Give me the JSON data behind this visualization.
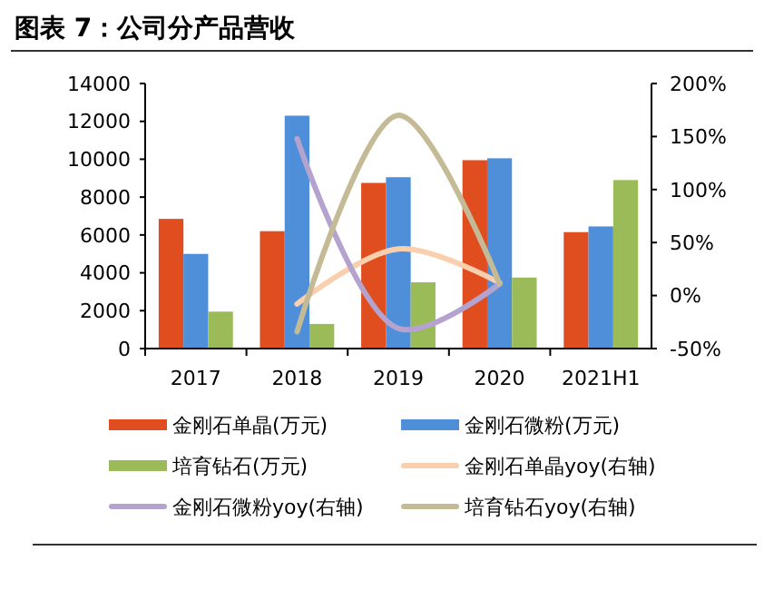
{
  "chart_data": {
    "type": "bar",
    "title": "图表 7：公司分产品营收",
    "categories": [
      "2017",
      "2018",
      "2019",
      "2020",
      "2021H1"
    ],
    "series": [
      {
        "name": "金刚石单晶(万元)",
        "color": "#e04e20",
        "values": [
          6850,
          6200,
          8750,
          9950,
          6150
        ]
      },
      {
        "name": "金刚石微粉(万元)",
        "color": "#4f8fd9",
        "values": [
          5000,
          12300,
          9050,
          10050,
          6450
        ]
      },
      {
        "name": "培育钻石(万元)",
        "color": "#9bbb59",
        "values": [
          1950,
          1300,
          3500,
          3750,
          8900
        ]
      },
      {
        "name": "金刚石单晶yoy(右轴)",
        "type": "line",
        "axis": "y2",
        "color": "#f9cfae",
        "values": [
          null,
          -8,
          44,
          12,
          null
        ]
      },
      {
        "name": "金刚石微粉yoy(右轴)",
        "type": "line",
        "axis": "y2",
        "color": "#b4a3cf",
        "values": [
          null,
          148,
          -31,
          11,
          null
        ]
      },
      {
        "name": "培育钻石yoy(右轴)",
        "type": "line",
        "axis": "y2",
        "color": "#c4bb96",
        "values": [
          null,
          -34,
          170,
          11,
          null
        ]
      }
    ],
    "ylim": [
      0,
      14000
    ],
    "yticks": [
      0,
      2000,
      4000,
      6000,
      8000,
      10000,
      12000,
      14000
    ],
    "y2lim": [
      -50,
      200
    ],
    "y2ticks": [
      {
        "value": -50,
        "label": "-50%"
      },
      {
        "value": 0,
        "label": "0%"
      },
      {
        "value": 50,
        "label": "50%"
      },
      {
        "value": 100,
        "label": "100%"
      },
      {
        "value": 150,
        "label": "150%"
      },
      {
        "value": 200,
        "label": "200%"
      }
    ],
    "grid": false,
    "legend": "bottom"
  }
}
